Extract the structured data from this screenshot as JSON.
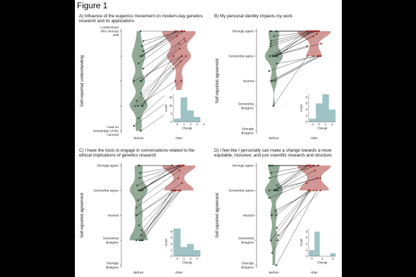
{
  "figure_title": "Figure 1",
  "colors": {
    "before_violin": "#7f9a85",
    "after_violin": "#c98582",
    "before_point": "#2f4a36",
    "after_point": "#9a2e2e",
    "histogram": "#9fc3c5",
    "line": "#111111"
  },
  "chart_data": [
    {
      "panel": "A",
      "type": "violin",
      "title": "A) Influence of the eugenics movement on modern-day genetics research and its applications",
      "ylabel": "Self-reported understanding",
      "categories": [
        "Before",
        "After"
      ],
      "y_levels": [
        "I had no knowledge of the concept",
        "",
        "",
        "",
        "I understood this concept well"
      ],
      "ylim": [
        1,
        5
      ],
      "series": [
        {
          "name": "Before",
          "values": [
            5,
            4.6,
            4.4,
            4.2,
            4,
            4,
            4,
            3.7,
            3.5,
            3,
            3,
            3,
            3,
            2.5,
            2.2,
            2,
            2,
            2,
            2,
            2,
            1.5,
            1.2,
            1
          ]
        },
        {
          "name": "After",
          "values": [
            5,
            5,
            5,
            5,
            5,
            5,
            5,
            4.8,
            4.7,
            4.6,
            4.5,
            4.3,
            4,
            4,
            4,
            4,
            4,
            3.8,
            3.5,
            3,
            3,
            2.5,
            2
          ]
        }
      ],
      "histogram": {
        "xlabel": "Change",
        "ylabel": "Count",
        "x_ticks": [
          "0",
          "1",
          "2",
          "3",
          "4"
        ],
        "y_ticks": [
          "0",
          "5",
          "10",
          "15"
        ],
        "bins": [
          0,
          1,
          2,
          3
        ],
        "counts": [
          2,
          15,
          7,
          3
        ],
        "ylim": [
          0,
          17
        ]
      }
    },
    {
      "panel": "B",
      "type": "violin",
      "title": "B) My personal identity impacts my work",
      "ylabel": "Self-reported agreement",
      "categories": [
        "Before",
        "After"
      ],
      "y_levels": [
        "Strongly disagree",
        "Somewhat disagree",
        "Neutral",
        "Somewhat agree",
        "Strongly agree"
      ],
      "ylim": [
        1,
        5
      ],
      "series": [
        {
          "name": "Before",
          "values": [
            5,
            5,
            5,
            5,
            4.8,
            4.6,
            4.5,
            4.4,
            4,
            4,
            4,
            4,
            4,
            4,
            4,
            4,
            3.7,
            3.4,
            3,
            3,
            3,
            2
          ]
        },
        {
          "name": "After",
          "values": [
            5,
            5,
            5,
            5,
            5,
            5,
            5,
            5,
            5,
            5,
            5,
            5,
            4.9,
            4.8,
            4.5,
            4.4,
            4,
            4,
            4,
            4,
            4,
            4
          ]
        }
      ],
      "histogram": {
        "xlabel": "Change",
        "ylabel": "Count",
        "x_ticks": [
          "-1",
          "0",
          "1",
          "2"
        ],
        "y_ticks": [
          "0",
          "2",
          "4",
          "6",
          "8"
        ],
        "bins": [
          -1,
          0,
          1,
          2
        ],
        "counts": [
          1,
          6,
          9,
          4
        ],
        "ylim": [
          0,
          9
        ]
      }
    },
    {
      "panel": "C",
      "type": "violin",
      "title": "C) I have the tools to engage in conversations related to the ethical implications of genetics research",
      "ylabel": "Self-reported agreement",
      "categories": [
        "Before",
        "After"
      ],
      "y_levels": [
        "Strongly disagree",
        "Somewhat disagree",
        "Neutral",
        "Somewhat agree",
        "Strongly agree"
      ],
      "ylim": [
        1,
        5
      ],
      "series": [
        {
          "name": "Before",
          "values": [
            5,
            5,
            4.7,
            4.5,
            4.2,
            4,
            4,
            4,
            4,
            4,
            3.6,
            3.3,
            3,
            3,
            2.6,
            2.4,
            2.2,
            2,
            2,
            2,
            2,
            2
          ]
        },
        {
          "name": "After",
          "values": [
            5,
            5,
            5,
            5,
            5,
            5,
            5,
            5,
            5,
            5,
            4.8,
            4.5,
            4.3,
            4,
            4,
            4,
            4,
            4,
            4,
            4,
            4,
            4
          ]
        }
      ],
      "histogram": {
        "xlabel": "Change",
        "ylabel": "Count",
        "x_ticks": [
          "0",
          "1",
          "2",
          "3"
        ],
        "y_ticks": [
          "0",
          "2",
          "4",
          "6",
          "8"
        ],
        "bins": [
          0,
          1,
          2,
          3
        ],
        "counts": [
          9,
          3,
          4,
          2
        ],
        "ylim": [
          0,
          9
        ]
      }
    },
    {
      "panel": "D",
      "type": "violin",
      "title": "D) I feel like I personally can make a change towards a more equitable, inclusive, and just scientific research and structure",
      "ylabel": "Self-reported agreement",
      "categories": [
        "Before",
        "After"
      ],
      "y_levels": [
        "Strongly disagree",
        "Somewhat disagree",
        "Neutral",
        "Somewhat agree",
        "Strongly agree"
      ],
      "ylim": [
        1,
        5
      ],
      "series": [
        {
          "name": "Before",
          "values": [
            5,
            5,
            5,
            5,
            4.7,
            4.5,
            4.2,
            4,
            4,
            4,
            4,
            4,
            4,
            3.7,
            3.2,
            3,
            3,
            2.5,
            2.2,
            2,
            2,
            1.5,
            1
          ]
        },
        {
          "name": "After",
          "values": [
            5,
            5,
            5,
            5,
            5,
            5,
            5,
            5,
            5,
            5,
            4.8,
            4.5,
            4.5,
            4.3,
            4,
            4,
            4,
            4,
            4,
            4,
            4,
            4,
            4
          ]
        }
      ],
      "histogram": {
        "xlabel": "Change",
        "ylabel": "Count",
        "x_ticks": [
          "0",
          "2",
          "4"
        ],
        "y_ticks": [
          "0",
          "2",
          "4",
          "6",
          "8"
        ],
        "bins": [
          0,
          1,
          2,
          3,
          4
        ],
        "counts": [
          2,
          8,
          0,
          0,
          1
        ],
        "ylim": [
          0,
          9
        ]
      }
    }
  ]
}
